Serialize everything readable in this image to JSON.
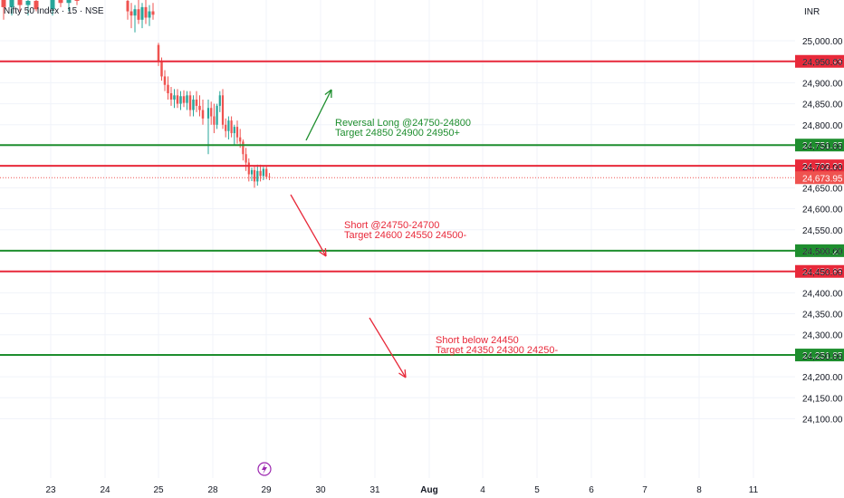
{
  "header": {
    "title": "Nifty 50 Index · 15 · NSE",
    "currency": "INR"
  },
  "colors": {
    "up": "#26a69a",
    "down": "#ef5350",
    "support_line": "#1e8e2e",
    "resistance_line": "#e8293a",
    "long_text": "#1e8e2e",
    "short_text": "#e8293a",
    "event_icon": "#9c27b0",
    "axis_text": "#131722"
  },
  "chart_data": {
    "type": "candlestick",
    "title": "Nifty 50 Index · 15 · NSE",
    "ylim": [
      24075,
      25070
    ],
    "y_ticks": [
      "25,000.00",
      "24,950.00",
      "24,900.00",
      "24,850.00",
      "24,800.00",
      "24,750.00",
      "24,700.00",
      "24,650.00",
      "24,600.00",
      "24,550.00",
      "24,500.00",
      "24,450.00",
      "24,400.00",
      "24,350.00",
      "24,300.00",
      "24,250.00",
      "24,200.00",
      "24,150.00",
      "24,100.00"
    ],
    "x_ticks": [
      "23",
      "24",
      "25",
      "28",
      "29",
      "30",
      "31",
      "Aug",
      "4",
      "5",
      "6",
      "7",
      "8",
      "11"
    ],
    "horizontal_levels": [
      {
        "value": 24950.95,
        "label": "24,950.95",
        "type": "resistance"
      },
      {
        "value": 24751.65,
        "label": "24,751.65",
        "type": "support"
      },
      {
        "value": 24702.2,
        "label": "24,702.20",
        "type": "resistance"
      },
      {
        "value": 24500.2,
        "label": "24,500.20",
        "type": "support"
      },
      {
        "value": 24450.85,
        "label": "24,450.85",
        "type": "resistance"
      },
      {
        "value": 24251.85,
        "label": "24,251.85",
        "type": "support"
      }
    ],
    "last_price": {
      "value": 24673.95,
      "label": "24,673.95"
    },
    "candles": [
      {
        "day": "22",
        "o": 25110,
        "h": 25130,
        "l": 25050,
        "c": 25080
      },
      {
        "day": "22",
        "o": 25080,
        "h": 25120,
        "l": 25060,
        "c": 25100
      },
      {
        "day": "22",
        "o": 25100,
        "h": 25125,
        "l": 25070,
        "c": 25085
      },
      {
        "day": "22",
        "o": 25085,
        "h": 25110,
        "l": 25060,
        "c": 25095
      },
      {
        "day": "22",
        "o": 25095,
        "h": 25120,
        "l": 25070,
        "c": 25075
      },
      {
        "day": "23",
        "o": 25075,
        "h": 25110,
        "l": 25060,
        "c": 25100
      },
      {
        "day": "23",
        "o": 25100,
        "h": 25130,
        "l": 25080,
        "c": 25090
      },
      {
        "day": "23",
        "o": 25090,
        "h": 25115,
        "l": 25070,
        "c": 25105
      },
      {
        "day": "23",
        "o": 25105,
        "h": 25125,
        "l": 25085,
        "c": 25095
      },
      {
        "day": "24",
        "o": 25095,
        "h": 25120,
        "l": 25050,
        "c": 25070
      },
      {
        "day": "24",
        "o": 25070,
        "h": 25090,
        "l": 25030,
        "c": 25060
      },
      {
        "day": "24",
        "o": 25060,
        "h": 25085,
        "l": 25020,
        "c": 25075
      },
      {
        "day": "24",
        "o": 25075,
        "h": 25110,
        "l": 25040,
        "c": 25050
      },
      {
        "day": "24",
        "o": 25050,
        "h": 25090,
        "l": 25030,
        "c": 25080
      },
      {
        "day": "24",
        "o": 25080,
        "h": 25100,
        "l": 25040,
        "c": 25055
      },
      {
        "day": "24",
        "o": 25055,
        "h": 25085,
        "l": 25035,
        "c": 25070
      },
      {
        "day": "24",
        "o": 25070,
        "h": 25090,
        "l": 25050,
        "c": 25062
      },
      {
        "day": "25",
        "o": 24990,
        "h": 24995,
        "l": 24940,
        "c": 24950
      },
      {
        "day": "25",
        "o": 24950,
        "h": 24960,
        "l": 24905,
        "c": 24915
      },
      {
        "day": "25",
        "o": 24915,
        "h": 24930,
        "l": 24880,
        "c": 24895
      },
      {
        "day": "25",
        "o": 24895,
        "h": 24915,
        "l": 24860,
        "c": 24875
      },
      {
        "day": "25",
        "o": 24875,
        "h": 24890,
        "l": 24845,
        "c": 24860
      },
      {
        "day": "25",
        "o": 24860,
        "h": 24885,
        "l": 24840,
        "c": 24870
      },
      {
        "day": "25",
        "o": 24870,
        "h": 24885,
        "l": 24840,
        "c": 24850
      },
      {
        "day": "25",
        "o": 24850,
        "h": 24880,
        "l": 24835,
        "c": 24868
      },
      {
        "day": "25",
        "o": 24868,
        "h": 24882,
        "l": 24842,
        "c": 24852
      },
      {
        "day": "25",
        "o": 24852,
        "h": 24880,
        "l": 24835,
        "c": 24870
      },
      {
        "day": "25",
        "o": 24870,
        "h": 24880,
        "l": 24820,
        "c": 24835
      },
      {
        "day": "25",
        "o": 24835,
        "h": 24870,
        "l": 24820,
        "c": 24860
      },
      {
        "day": "25",
        "o": 24860,
        "h": 24880,
        "l": 24830,
        "c": 24845
      },
      {
        "day": "25",
        "o": 24845,
        "h": 24870,
        "l": 24820,
        "c": 24835
      },
      {
        "day": "25",
        "o": 24835,
        "h": 24860,
        "l": 24800,
        "c": 24815
      },
      {
        "day": "28",
        "o": 24815,
        "h": 24860,
        "l": 24730,
        "c": 24840
      },
      {
        "day": "28",
        "o": 24840,
        "h": 24855,
        "l": 24800,
        "c": 24820
      },
      {
        "day": "28",
        "o": 24820,
        "h": 24850,
        "l": 24780,
        "c": 24800
      },
      {
        "day": "28",
        "o": 24800,
        "h": 24850,
        "l": 24790,
        "c": 24845
      },
      {
        "day": "28",
        "o": 24845,
        "h": 24880,
        "l": 24830,
        "c": 24870
      },
      {
        "day": "28",
        "o": 24870,
        "h": 24885,
        "l": 24790,
        "c": 24800
      },
      {
        "day": "28",
        "o": 24800,
        "h": 24815,
        "l": 24770,
        "c": 24785
      },
      {
        "day": "28",
        "o": 24785,
        "h": 24820,
        "l": 24765,
        "c": 24810
      },
      {
        "day": "28",
        "o": 24810,
        "h": 24820,
        "l": 24770,
        "c": 24780
      },
      {
        "day": "28",
        "o": 24780,
        "h": 24800,
        "l": 24750,
        "c": 24795
      },
      {
        "day": "28",
        "o": 24795,
        "h": 24810,
        "l": 24755,
        "c": 24770
      },
      {
        "day": "28",
        "o": 24770,
        "h": 24790,
        "l": 24745,
        "c": 24760
      },
      {
        "day": "28",
        "o": 24760,
        "h": 24765,
        "l": 24715,
        "c": 24730
      },
      {
        "day": "28",
        "o": 24730,
        "h": 24745,
        "l": 24690,
        "c": 24710
      },
      {
        "day": "28",
        "o": 24710,
        "h": 24720,
        "l": 24665,
        "c": 24682
      },
      {
        "day": "28",
        "o": 24682,
        "h": 24698,
        "l": 24666,
        "c": 24692
      },
      {
        "day": "29",
        "o": 24692,
        "h": 24700,
        "l": 24650,
        "c": 24665
      },
      {
        "day": "29",
        "o": 24665,
        "h": 24705,
        "l": 24655,
        "c": 24690
      },
      {
        "day": "29",
        "o": 24690,
        "h": 24705,
        "l": 24665,
        "c": 24678
      },
      {
        "day": "29",
        "o": 24678,
        "h": 24700,
        "l": 24668,
        "c": 24695
      },
      {
        "day": "29",
        "o": 24695,
        "h": 24702,
        "l": 24670,
        "c": 24676
      },
      {
        "day": "29",
        "o": 24676,
        "h": 24685,
        "l": 24668,
        "c": 24674
      }
    ],
    "annotations": [
      {
        "line1": "Reversal Long  @24750-24800",
        "line2": "Target 24850 24900 24950+",
        "color": "long"
      },
      {
        "line1": "Short @24750-24700",
        "line2": "Target 24600 24550 24500-",
        "color": "short"
      },
      {
        "line1": "Short below 24450",
        "line2": "Target 24350 24300 24250-",
        "color": "short"
      }
    ],
    "grid": true
  },
  "icons": {
    "event": "lightning-icon"
  }
}
